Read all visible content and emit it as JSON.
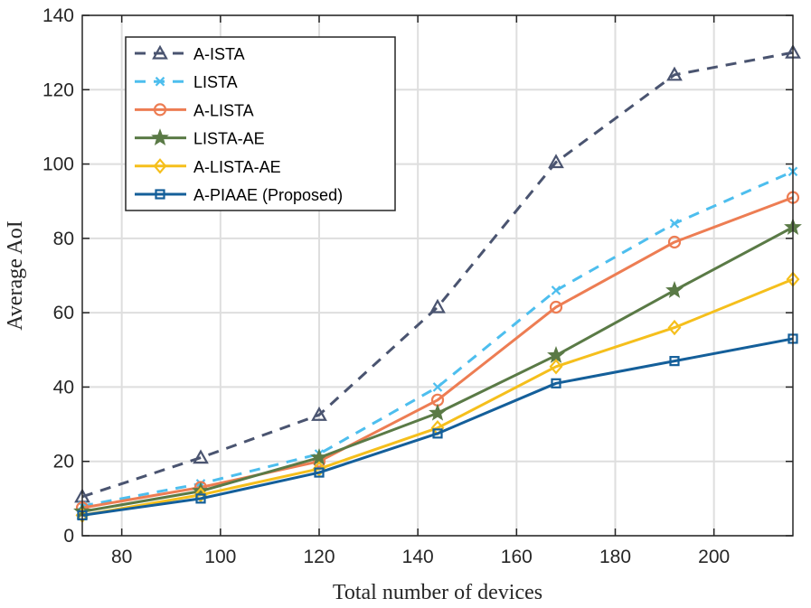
{
  "chart_data": {
    "type": "line",
    "xlabel": "Total number of devices",
    "ylabel": "Average AoI",
    "xlim": [
      72,
      216
    ],
    "ylim": [
      0,
      140
    ],
    "xticks": [
      80,
      100,
      120,
      140,
      160,
      180,
      200
    ],
    "yticks": [
      0,
      20,
      40,
      60,
      80,
      100,
      120,
      140
    ],
    "grid": true,
    "legend_position": "top-left",
    "x": [
      72,
      96,
      120,
      144,
      168,
      192,
      216
    ],
    "series": [
      {
        "name": "A-ISTA",
        "values": [
          10.5,
          21,
          32.5,
          61.5,
          100.5,
          124,
          130
        ],
        "color": "#4a5470",
        "dash": "dashed",
        "marker": "triangle"
      },
      {
        "name": "LISTA",
        "values": [
          8,
          14,
          22,
          40,
          66,
          84,
          98
        ],
        "color": "#4dbeee",
        "dash": "dashed",
        "marker": "x"
      },
      {
        "name": "A-LISTA",
        "values": [
          7.5,
          13,
          20,
          36.5,
          61.5,
          79,
          91
        ],
        "color": "#ed7d53",
        "dash": "solid",
        "marker": "circle"
      },
      {
        "name": "LISTA-AE",
        "values": [
          6.5,
          12,
          21,
          33,
          48.5,
          66,
          83
        ],
        "color": "#5a7a46",
        "dash": "solid",
        "marker": "star"
      },
      {
        "name": "A-LISTA-AE",
        "values": [
          5.5,
          11,
          18,
          29,
          45.5,
          56,
          69
        ],
        "color": "#f5bf1c",
        "dash": "solid",
        "marker": "diamond"
      },
      {
        "name": "A-PIAAE (Proposed)",
        "values": [
          5.5,
          10,
          17,
          27.5,
          41,
          47,
          53
        ],
        "color": "#145f9a",
        "dash": "solid",
        "marker": "square"
      }
    ]
  }
}
